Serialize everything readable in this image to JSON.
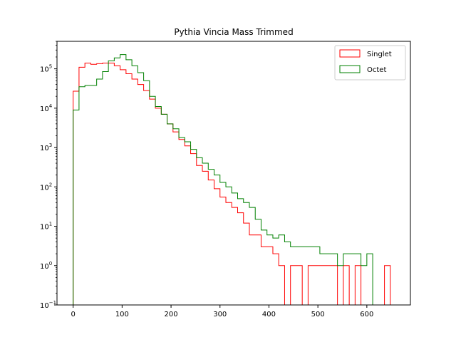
{
  "chart_data": {
    "type": "histogram",
    "title": "Pythia Vincia Mass Trimmed",
    "xlabel": "",
    "ylabel": "",
    "xlim": [
      -33,
      689
    ],
    "ylim": [
      0.1,
      500000
    ],
    "yscale": "log",
    "x_ticks": [
      0,
      100,
      200,
      300,
      400,
      500,
      600
    ],
    "x_tick_labels": [
      "0",
      "100",
      "200",
      "300",
      "400",
      "500",
      "600"
    ],
    "y_ticks": [
      0.1,
      1,
      10,
      100,
      1000,
      10000,
      100000
    ],
    "y_tick_labels": [
      "10",
      "10",
      "10",
      "10",
      "10",
      "10",
      "10"
    ],
    "y_tick_exponents": [
      "−1",
      "0",
      "1",
      "2",
      "3",
      "4",
      "5"
    ],
    "grid": false,
    "legend": "top-right",
    "bin_edges": [
      0,
      12,
      24,
      36,
      48,
      60,
      72,
      84,
      96,
      108,
      120,
      132,
      144,
      156,
      168,
      180,
      192,
      204,
      216,
      228,
      240,
      252,
      264,
      276,
      288,
      300,
      312,
      324,
      336,
      348,
      360,
      372,
      384,
      396,
      408,
      420,
      432,
      444,
      456,
      468,
      480,
      492,
      504,
      516,
      528,
      540,
      552,
      564,
      576,
      588,
      600,
      612,
      624,
      636,
      648,
      660
    ],
    "series": [
      {
        "name": "Singlet",
        "color": "#ff0000",
        "values": [
          27000,
          110000,
          140000,
          130000,
          135000,
          140000,
          140000,
          120000,
          95000,
          75000,
          55000,
          40000,
          28000,
          17000,
          10000,
          7000,
          4000,
          2500,
          1600,
          1100,
          700,
          350,
          250,
          150,
          90,
          55,
          40,
          30,
          22,
          12,
          6,
          6,
          3,
          3,
          2,
          1,
          0.1,
          1,
          1,
          0.1,
          1,
          1,
          1,
          1,
          1,
          0.1,
          1,
          0.1,
          1,
          0.1,
          0.1,
          0.1,
          0.1,
          1,
          0.1
        ]
      },
      {
        "name": "Octet",
        "color": "#008000",
        "values": [
          9000,
          35000,
          38000,
          38000,
          55000,
          85000,
          160000,
          190000,
          230000,
          170000,
          120000,
          80000,
          50000,
          20000,
          11000,
          7000,
          4000,
          3000,
          1800,
          1400,
          900,
          550,
          400,
          280,
          200,
          130,
          100,
          70,
          50,
          40,
          30,
          15,
          8,
          6,
          5,
          6,
          4,
          3,
          3,
          3,
          3,
          3,
          2,
          2,
          2,
          1,
          2,
          2,
          2,
          1,
          2,
          0.1,
          0.1,
          0.1,
          0.1
        ]
      }
    ]
  }
}
